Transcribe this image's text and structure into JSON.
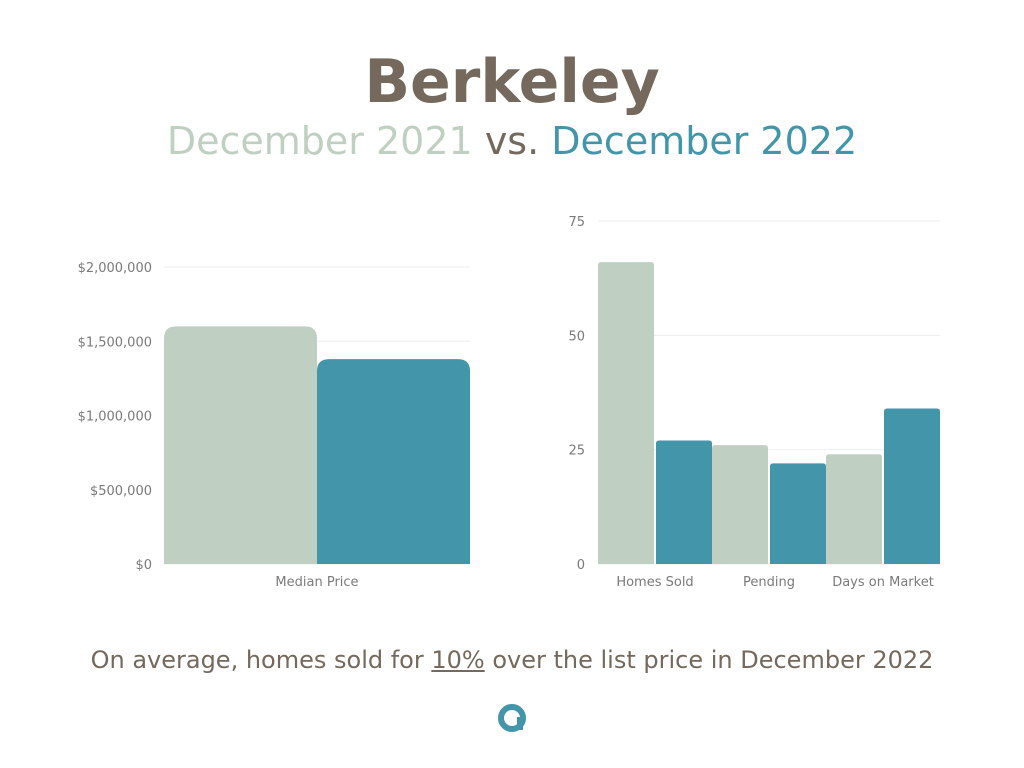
{
  "header": {
    "title": "Berkeley",
    "period_a": "December 2021",
    "vs": "vs.",
    "period_b": "December 2022"
  },
  "colors": {
    "period_a": "#bfd0c3",
    "period_b": "#4395aa",
    "text": "#74695c",
    "grid": "#eeeeee",
    "axis_text": "#7a7a7a"
  },
  "chart_data": [
    {
      "type": "bar",
      "categories": [
        "Median Price"
      ],
      "series": [
        {
          "values": [
            1600000
          ]
        },
        {
          "values": [
            1380000
          ]
        }
      ],
      "ylim": [
        0,
        2000000
      ],
      "yticks": [
        0,
        500000,
        1000000,
        1500000,
        2000000
      ],
      "ytick_labels": [
        "$0",
        "$500,000",
        "$1,000,000",
        "$1,500,000",
        "$2,000,000"
      ],
      "grid": true
    },
    {
      "type": "bar",
      "categories": [
        "Homes Sold",
        "Pending",
        "Days on Market"
      ],
      "series": [
        {
          "values": [
            66,
            26,
            24
          ]
        },
        {
          "values": [
            27,
            22,
            34
          ]
        }
      ],
      "ylim": [
        0,
        75
      ],
      "yticks": [
        0,
        25,
        50,
        75
      ],
      "ytick_labels": [
        "0",
        "25",
        "50",
        "75"
      ],
      "grid": true
    }
  ],
  "footer": {
    "before": "On average, homes sold for ",
    "percent": "10%",
    "after": " over the list price in December 2022"
  },
  "logo": {
    "icon": "brand-logo-icon"
  }
}
